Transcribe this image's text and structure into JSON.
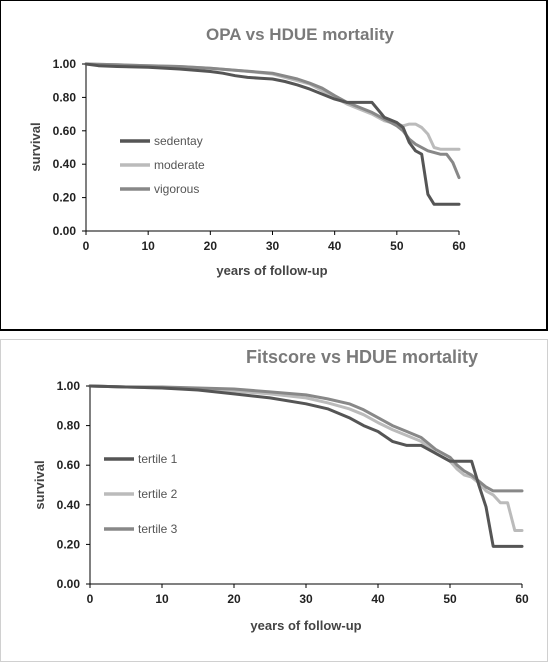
{
  "chart_data": [
    {
      "type": "line",
      "title": "OPA vs HDUE mortality",
      "xlabel": "years of follow-up",
      "ylabel": "survival",
      "xlim": [
        0,
        60
      ],
      "ylim": [
        0,
        1
      ],
      "xticks": [
        "0",
        "10",
        "20",
        "30",
        "40",
        "50",
        "60"
      ],
      "yticks": [
        "0.00",
        "0.20",
        "0.40",
        "0.60",
        "0.80",
        "1.00"
      ],
      "grid": false,
      "legend_position": "left",
      "series": [
        {
          "name": "sedentay",
          "color": "#555555",
          "x": [
            0,
            2,
            5,
            10,
            15,
            20,
            22,
            24,
            26,
            28,
            30,
            32,
            34,
            36,
            38,
            40,
            42,
            44,
            46,
            48,
            50,
            51,
            52,
            53,
            54,
            55,
            56,
            57,
            58,
            60
          ],
          "y": [
            1.0,
            0.99,
            0.985,
            0.98,
            0.97,
            0.955,
            0.945,
            0.93,
            0.92,
            0.915,
            0.91,
            0.895,
            0.875,
            0.85,
            0.82,
            0.79,
            0.77,
            0.77,
            0.77,
            0.68,
            0.65,
            0.62,
            0.53,
            0.48,
            0.46,
            0.22,
            0.16,
            0.16,
            0.16,
            0.16
          ]
        },
        {
          "name": "moderate",
          "color": "#bbbbbb",
          "x": [
            0,
            5,
            10,
            15,
            20,
            25,
            30,
            33,
            36,
            38,
            40,
            42,
            44,
            46,
            48,
            50,
            51,
            52,
            53,
            54,
            55,
            56,
            57,
            58,
            60
          ],
          "y": [
            1.0,
            0.995,
            0.99,
            0.985,
            0.975,
            0.96,
            0.94,
            0.91,
            0.88,
            0.84,
            0.8,
            0.76,
            0.73,
            0.7,
            0.66,
            0.64,
            0.63,
            0.64,
            0.64,
            0.62,
            0.58,
            0.5,
            0.49,
            0.49,
            0.49
          ]
        },
        {
          "name": "vigorous",
          "color": "#888888",
          "x": [
            0,
            5,
            10,
            15,
            20,
            25,
            30,
            34,
            36,
            38,
            40,
            42,
            44,
            46,
            48,
            50,
            51,
            52,
            53,
            55,
            57,
            58,
            59,
            60
          ],
          "y": [
            1.0,
            0.995,
            0.99,
            0.985,
            0.975,
            0.96,
            0.945,
            0.91,
            0.885,
            0.855,
            0.81,
            0.77,
            0.74,
            0.71,
            0.67,
            0.63,
            0.6,
            0.55,
            0.52,
            0.48,
            0.46,
            0.46,
            0.41,
            0.32
          ]
        }
      ]
    },
    {
      "type": "line",
      "title": "Fitscore vs HDUE mortality",
      "xlabel": "years of follow-up",
      "ylabel": "survival",
      "xlim": [
        0,
        60
      ],
      "ylim": [
        0,
        1
      ],
      "xticks": [
        "0",
        "10",
        "20",
        "30",
        "40",
        "50",
        "60"
      ],
      "yticks": [
        "0.00",
        "0.20",
        "0.40",
        "0.60",
        "0.80",
        "1.00"
      ],
      "grid": false,
      "legend_position": "left",
      "series": [
        {
          "name": "tertile 1",
          "color": "#555555",
          "x": [
            0,
            5,
            10,
            15,
            20,
            25,
            30,
            33,
            36,
            38,
            40,
            42,
            44,
            46,
            48,
            50,
            52,
            53,
            54,
            55,
            56,
            57,
            58,
            60
          ],
          "y": [
            1.0,
            0.995,
            0.99,
            0.98,
            0.96,
            0.94,
            0.91,
            0.885,
            0.84,
            0.8,
            0.77,
            0.72,
            0.7,
            0.7,
            0.66,
            0.62,
            0.62,
            0.62,
            0.5,
            0.39,
            0.19,
            0.19,
            0.19,
            0.19
          ]
        },
        {
          "name": "tertile 2",
          "color": "#bbbbbb",
          "x": [
            0,
            5,
            10,
            15,
            20,
            25,
            30,
            33,
            36,
            38,
            40,
            42,
            44,
            46,
            48,
            50,
            51,
            52,
            53,
            54,
            55,
            56,
            57,
            58,
            59,
            60
          ],
          "y": [
            1.0,
            0.995,
            0.99,
            0.985,
            0.975,
            0.96,
            0.94,
            0.915,
            0.885,
            0.855,
            0.815,
            0.78,
            0.75,
            0.72,
            0.66,
            0.62,
            0.58,
            0.55,
            0.54,
            0.51,
            0.47,
            0.45,
            0.41,
            0.41,
            0.27,
            0.27
          ]
        },
        {
          "name": "tertile 3",
          "color": "#888888",
          "x": [
            0,
            5,
            10,
            15,
            20,
            25,
            30,
            33,
            36,
            38,
            40,
            42,
            44,
            46,
            48,
            50,
            51,
            52,
            53,
            55,
            56,
            57,
            58,
            60
          ],
          "y": [
            1.0,
            0.995,
            0.995,
            0.99,
            0.985,
            0.97,
            0.955,
            0.935,
            0.91,
            0.88,
            0.84,
            0.8,
            0.77,
            0.74,
            0.68,
            0.64,
            0.6,
            0.57,
            0.55,
            0.49,
            0.47,
            0.47,
            0.47,
            0.47
          ]
        }
      ]
    }
  ]
}
